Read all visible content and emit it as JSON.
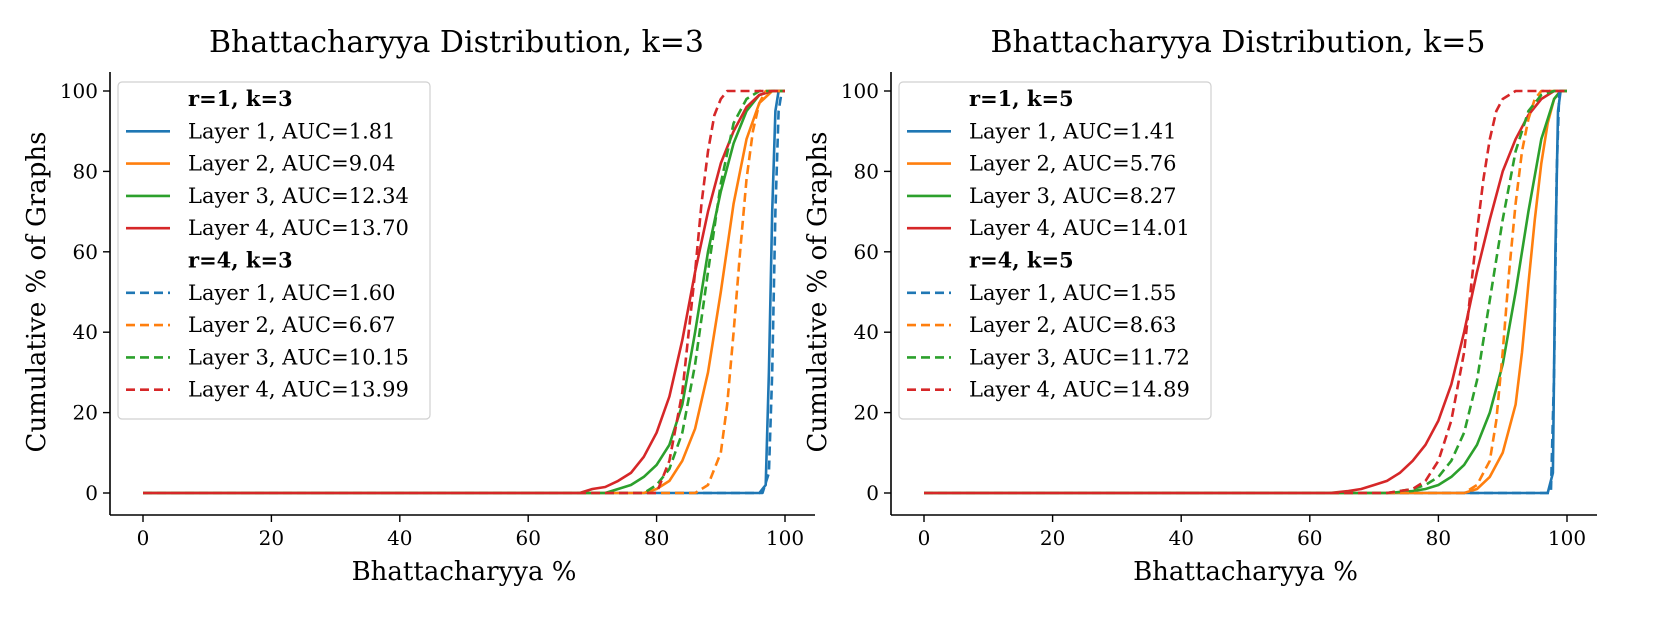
{
  "colors": {
    "layer1": "#1f77b4",
    "layer2": "#ff7f0e",
    "layer3": "#2ca02c",
    "layer4": "#d62728"
  },
  "chart_data": [
    {
      "type": "line",
      "title": "Bhattacharyya Distribution, k=3",
      "xlabel": "Bhattacharyya %",
      "ylabel": "Cumulative % of Graphs",
      "xlim": [
        0,
        100
      ],
      "ylim": [
        0,
        100
      ],
      "xticks": [
        "0",
        "20",
        "40",
        "60",
        "80",
        "100"
      ],
      "yticks": [
        "0",
        "20",
        "40",
        "60",
        "80",
        "100"
      ],
      "legend": {
        "placement": "upper-left",
        "group_titles": [
          "r=1, k=3",
          "r=4, k=3"
        ]
      },
      "series": [
        {
          "name": "Layer 1, AUC=1.81",
          "group": "r=1, k=3",
          "style": "solid",
          "color": "#1f77b4",
          "points": [
            [
              0,
              0
            ],
            [
              96,
              0
            ],
            [
              97,
              2
            ],
            [
              97.5,
              30
            ],
            [
              98,
              70
            ],
            [
              98.5,
              95
            ],
            [
              99,
              100
            ],
            [
              100,
              100
            ]
          ]
        },
        {
          "name": "Layer 2, AUC=9.04",
          "group": "r=1, k=3",
          "style": "solid",
          "color": "#ff7f0e",
          "points": [
            [
              0,
              0
            ],
            [
              78,
              0
            ],
            [
              80,
              1
            ],
            [
              82,
              3
            ],
            [
              84,
              8
            ],
            [
              86,
              16
            ],
            [
              88,
              30
            ],
            [
              90,
              50
            ],
            [
              92,
              72
            ],
            [
              94,
              88
            ],
            [
              96,
              97
            ],
            [
              98,
              100
            ],
            [
              100,
              100
            ]
          ]
        },
        {
          "name": "Layer 3, AUC=12.34",
          "group": "r=1, k=3",
          "style": "solid",
          "color": "#2ca02c",
          "points": [
            [
              0,
              0
            ],
            [
              72,
              0
            ],
            [
              74,
              1
            ],
            [
              76,
              2
            ],
            [
              78,
              4
            ],
            [
              80,
              7
            ],
            [
              82,
              12
            ],
            [
              84,
              22
            ],
            [
              86,
              40
            ],
            [
              88,
              60
            ],
            [
              90,
              75
            ],
            [
              92,
              87
            ],
            [
              94,
              95
            ],
            [
              96,
              99
            ],
            [
              98,
              100
            ],
            [
              100,
              100
            ]
          ]
        },
        {
          "name": "Layer 4, AUC=13.70",
          "group": "r=1, k=3",
          "style": "solid",
          "color": "#d62728",
          "points": [
            [
              0,
              0
            ],
            [
              68,
              0
            ],
            [
              70,
              1
            ],
            [
              72,
              1.5
            ],
            [
              74,
              3
            ],
            [
              76,
              5
            ],
            [
              78,
              9
            ],
            [
              80,
              15
            ],
            [
              82,
              24
            ],
            [
              84,
              38
            ],
            [
              86,
              55
            ],
            [
              88,
              70
            ],
            [
              90,
              82
            ],
            [
              92,
              90
            ],
            [
              94,
              96
            ],
            [
              96,
              99
            ],
            [
              98,
              100
            ],
            [
              100,
              100
            ]
          ]
        },
        {
          "name": "Layer 1, AUC=1.60",
          "group": "r=4, k=3",
          "style": "dashed",
          "color": "#1f77b4",
          "points": [
            [
              0,
              0
            ],
            [
              96.5,
              0
            ],
            [
              97.5,
              5
            ],
            [
              98,
              30
            ],
            [
              98.5,
              70
            ],
            [
              99,
              95
            ],
            [
              99.5,
              100
            ],
            [
              100,
              100
            ]
          ]
        },
        {
          "name": "Layer 2, AUC=6.67",
          "group": "r=4, k=3",
          "style": "dashed",
          "color": "#ff7f0e",
          "points": [
            [
              0,
              0
            ],
            [
              86,
              0
            ],
            [
              88,
              2
            ],
            [
              90,
              10
            ],
            [
              91,
              22
            ],
            [
              92,
              40
            ],
            [
              93,
              60
            ],
            [
              94,
              78
            ],
            [
              95,
              90
            ],
            [
              96,
              97
            ],
            [
              97,
              100
            ],
            [
              100,
              100
            ]
          ]
        },
        {
          "name": "Layer 3, AUC=10.15",
          "group": "r=4, k=3",
          "style": "dashed",
          "color": "#2ca02c",
          "points": [
            [
              0,
              0
            ],
            [
              78,
              0
            ],
            [
              80,
              2
            ],
            [
              82,
              6
            ],
            [
              84,
              15
            ],
            [
              86,
              32
            ],
            [
              88,
              55
            ],
            [
              90,
              77
            ],
            [
              92,
              92
            ],
            [
              94,
              98
            ],
            [
              96,
              100
            ],
            [
              100,
              100
            ]
          ]
        },
        {
          "name": "Layer 4, AUC=13.99",
          "group": "r=4, k=3",
          "style": "dashed",
          "color": "#d62728",
          "points": [
            [
              0,
              0
            ],
            [
              80,
              0
            ],
            [
              82,
              8
            ],
            [
              84,
              25
            ],
            [
              86,
              55
            ],
            [
              87,
              72
            ],
            [
              88,
              85
            ],
            [
              89,
              94
            ],
            [
              90,
              98
            ],
            [
              91,
              100
            ],
            [
              100,
              100
            ]
          ]
        }
      ]
    },
    {
      "type": "line",
      "title": "Bhattacharyya Distribution, k=5",
      "xlabel": "Bhattacharyya %",
      "ylabel": "Cumulative % of Graphs",
      "xlim": [
        0,
        100
      ],
      "ylim": [
        0,
        100
      ],
      "xticks": [
        "0",
        "20",
        "40",
        "60",
        "80",
        "100"
      ],
      "yticks": [
        "0",
        "20",
        "40",
        "60",
        "80",
        "100"
      ],
      "legend": {
        "placement": "upper-left",
        "group_titles": [
          "r=1, k=5",
          "r=4, k=5"
        ]
      },
      "series": [
        {
          "name": "Layer 1, AUC=1.41",
          "group": "r=1, k=5",
          "style": "solid",
          "color": "#1f77b4",
          "points": [
            [
              0,
              0
            ],
            [
              97,
              0
            ],
            [
              97.8,
              5
            ],
            [
              98.2,
              60
            ],
            [
              98.6,
              95
            ],
            [
              99,
              100
            ],
            [
              100,
              100
            ]
          ]
        },
        {
          "name": "Layer 2, AUC=5.76",
          "group": "r=1, k=5",
          "style": "solid",
          "color": "#ff7f0e",
          "points": [
            [
              0,
              0
            ],
            [
              84,
              0
            ],
            [
              86,
              1
            ],
            [
              88,
              4
            ],
            [
              90,
              10
            ],
            [
              92,
              22
            ],
            [
              93,
              35
            ],
            [
              94,
              52
            ],
            [
              95,
              68
            ],
            [
              96,
              82
            ],
            [
              97,
              92
            ],
            [
              98,
              98
            ],
            [
              99,
              100
            ],
            [
              100,
              100
            ]
          ]
        },
        {
          "name": "Layer 3, AUC=8.27",
          "group": "r=1, k=5",
          "style": "solid",
          "color": "#2ca02c",
          "points": [
            [
              0,
              0
            ],
            [
              72,
              0
            ],
            [
              76,
              0.5
            ],
            [
              78,
              1
            ],
            [
              80,
              2
            ],
            [
              82,
              4
            ],
            [
              84,
              7
            ],
            [
              86,
              12
            ],
            [
              88,
              20
            ],
            [
              90,
              32
            ],
            [
              92,
              50
            ],
            [
              94,
              70
            ],
            [
              96,
              88
            ],
            [
              98,
              98
            ],
            [
              99,
              100
            ],
            [
              100,
              100
            ]
          ]
        },
        {
          "name": "Layer 4, AUC=14.01",
          "group": "r=1, k=5",
          "style": "solid",
          "color": "#d62728",
          "points": [
            [
              0,
              0
            ],
            [
              63,
              0
            ],
            [
              66,
              0.5
            ],
            [
              68,
              1
            ],
            [
              70,
              2
            ],
            [
              72,
              3
            ],
            [
              74,
              5
            ],
            [
              76,
              8
            ],
            [
              78,
              12
            ],
            [
              80,
              18
            ],
            [
              82,
              27
            ],
            [
              84,
              40
            ],
            [
              86,
              55
            ],
            [
              88,
              68
            ],
            [
              90,
              80
            ],
            [
              92,
              88
            ],
            [
              94,
              94
            ],
            [
              96,
              98
            ],
            [
              98,
              100
            ],
            [
              100,
              100
            ]
          ]
        },
        {
          "name": "Layer 1, AUC=1.55",
          "group": "r=4, k=5",
          "style": "dashed",
          "color": "#1f77b4",
          "points": [
            [
              0,
              0
            ],
            [
              97.5,
              0
            ],
            [
              98,
              30
            ],
            [
              98.4,
              80
            ],
            [
              98.8,
              100
            ],
            [
              100,
              100
            ]
          ]
        },
        {
          "name": "Layer 2, AUC=8.63",
          "group": "r=4, k=5",
          "style": "dashed",
          "color": "#ff7f0e",
          "points": [
            [
              0,
              0
            ],
            [
              84,
              0
            ],
            [
              86,
              2
            ],
            [
              88,
              8
            ],
            [
              89,
              18
            ],
            [
              90,
              35
            ],
            [
              91,
              55
            ],
            [
              92,
              72
            ],
            [
              93,
              85
            ],
            [
              94,
              93
            ],
            [
              95,
              98
            ],
            [
              96,
              100
            ],
            [
              100,
              100
            ]
          ]
        },
        {
          "name": "Layer 3, AUC=11.72",
          "group": "r=4, k=5",
          "style": "dashed",
          "color": "#2ca02c",
          "points": [
            [
              0,
              0
            ],
            [
              72,
              0
            ],
            [
              76,
              1
            ],
            [
              78,
              2
            ],
            [
              80,
              4
            ],
            [
              82,
              8
            ],
            [
              84,
              15
            ],
            [
              86,
              28
            ],
            [
              88,
              48
            ],
            [
              90,
              68
            ],
            [
              92,
              85
            ],
            [
              94,
              95
            ],
            [
              96,
              99
            ],
            [
              98,
              100
            ],
            [
              100,
              100
            ]
          ]
        },
        {
          "name": "Layer 4, AUC=14.89",
          "group": "r=4, k=5",
          "style": "dashed",
          "color": "#d62728",
          "points": [
            [
              0,
              0
            ],
            [
              72,
              0
            ],
            [
              76,
              1
            ],
            [
              78,
              3
            ],
            [
              80,
              8
            ],
            [
              82,
              18
            ],
            [
              84,
              35
            ],
            [
              85,
              50
            ],
            [
              86,
              65
            ],
            [
              87,
              78
            ],
            [
              88,
              88
            ],
            [
              89,
              95
            ],
            [
              90,
              98
            ],
            [
              92,
              100
            ],
            [
              100,
              100
            ]
          ]
        }
      ]
    }
  ]
}
